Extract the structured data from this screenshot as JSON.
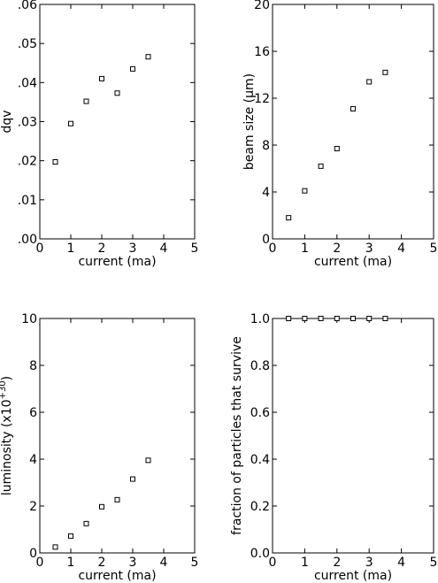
{
  "chart_data": [
    {
      "type": "scatter",
      "xlabel": "current (ma)",
      "ylabel": "dqv",
      "xlim": [
        0,
        5
      ],
      "ylim": [
        0,
        0.06
      ],
      "xticks": [
        0,
        1,
        2,
        3,
        4,
        5
      ],
      "xtick_labels": [
        "0",
        "1",
        "2",
        "3",
        "4",
        "5"
      ],
      "yticks": [
        0,
        0.01,
        0.02,
        0.03,
        0.04,
        0.05,
        0.06
      ],
      "ytick_labels": [
        ".00",
        ".01",
        ".02",
        ".03",
        ".04",
        ".05",
        ".06"
      ],
      "x": [
        0.5,
        1.0,
        1.5,
        2.0,
        2.5,
        3.0,
        3.5
      ],
      "y": [
        0.0197,
        0.0295,
        0.0352,
        0.041,
        0.0373,
        0.0435,
        0.0466
      ],
      "marker": "open-square",
      "grid": false
    },
    {
      "type": "scatter",
      "xlabel": "current (ma)",
      "ylabel": "beam size (μm)",
      "xlim": [
        0,
        5
      ],
      "ylim": [
        0,
        20
      ],
      "xticks": [
        0,
        1,
        2,
        3,
        4,
        5
      ],
      "xtick_labels": [
        "0",
        "1",
        "2",
        "3",
        "4",
        "5"
      ],
      "yticks": [
        0,
        4,
        8,
        12,
        16,
        20
      ],
      "ytick_labels": [
        "0",
        "4",
        "8",
        "12",
        "16",
        "20"
      ],
      "x": [
        0.5,
        1.0,
        1.5,
        2.0,
        2.5,
        3.0,
        3.5
      ],
      "y": [
        1.8,
        4.1,
        6.2,
        7.7,
        11.1,
        13.4,
        14.2
      ],
      "marker": "open-square",
      "grid": false
    },
    {
      "type": "scatter",
      "xlabel": "current (ma)",
      "ylabel": "luminosity  (x10",
      "ylabel_superscript": "+30",
      "ylabel_suffix": ")",
      "xlim": [
        0,
        5
      ],
      "ylim": [
        0,
        10
      ],
      "xticks": [
        0,
        1,
        2,
        3,
        4,
        5
      ],
      "xtick_labels": [
        "0",
        "1",
        "2",
        "3",
        "4",
        "5"
      ],
      "yticks": [
        0,
        2,
        4,
        6,
        8,
        10
      ],
      "ytick_labels": [
        "0",
        "2",
        "4",
        "6",
        "8",
        "10"
      ],
      "x": [
        0.5,
        1.0,
        1.5,
        2.0,
        2.5,
        3.0,
        3.5
      ],
      "y": [
        0.25,
        0.72,
        1.25,
        1.97,
        2.27,
        3.15,
        3.95
      ],
      "marker": "open-square",
      "grid": false
    },
    {
      "type": "scatter",
      "xlabel": "current (ma)",
      "ylabel": "fraction of particles that survive",
      "xlim": [
        0,
        5
      ],
      "ylim": [
        0,
        1
      ],
      "xticks": [
        0,
        1,
        2,
        3,
        4,
        5
      ],
      "xtick_labels": [
        "0",
        "1",
        "2",
        "3",
        "4",
        "5"
      ],
      "yticks": [
        0,
        0.2,
        0.4,
        0.6,
        0.8,
        1.0
      ],
      "ytick_labels": [
        "0.0",
        "0.2",
        "0.4",
        "0.6",
        "0.8",
        "1.0"
      ],
      "x": [
        0.5,
        1.0,
        1.5,
        2.0,
        2.5,
        3.0,
        3.5
      ],
      "y": [
        1.0,
        1.0,
        1.0,
        1.0,
        1.0,
        1.0,
        1.0
      ],
      "marker": "open-square",
      "grid": false
    }
  ]
}
